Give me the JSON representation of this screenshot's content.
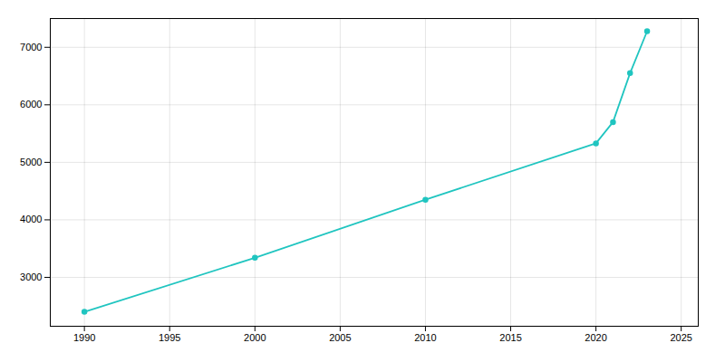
{
  "chart_data": {
    "type": "line",
    "x": [
      1990,
      2000,
      2010,
      2020,
      2021,
      2022,
      2023
    ],
    "values": [
      2400,
      3340,
      4350,
      5330,
      5700,
      6550,
      7280
    ],
    "color": "#20c5c0",
    "marker": "circle",
    "xlim": [
      1988,
      2026
    ],
    "ylim": [
      2150,
      7500
    ],
    "xticks": [
      1990,
      1995,
      2000,
      2005,
      2010,
      2015,
      2020,
      2025
    ],
    "yticks": [
      3000,
      4000,
      5000,
      6000,
      7000
    ],
    "grid": true
  }
}
